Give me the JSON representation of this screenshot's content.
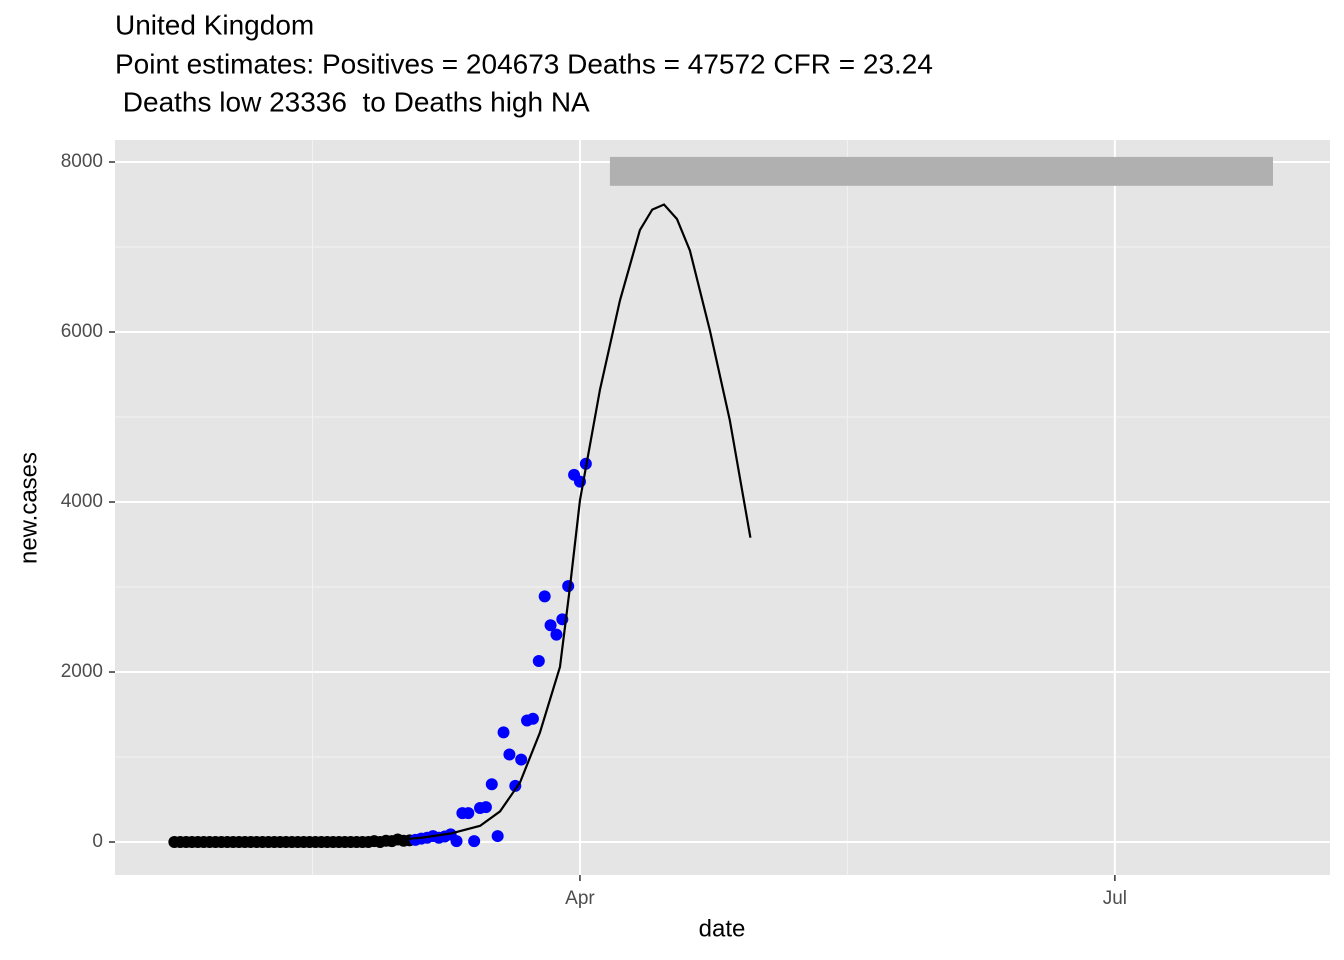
{
  "chart_data": {
    "type": "scatter",
    "title": [
      "United Kingdom",
      "Point estimates: Positives = 204673 Deaths = 47572 CFR = 23.24",
      " Deaths low 23336  to Deaths high NA"
    ],
    "x_label": "date",
    "y_label": "new.cases",
    "xlim": [
      12.9,
      219.6
    ],
    "ylim": [
      -388,
      8259
    ],
    "xticks": [
      {
        "value": 92,
        "label": "Apr"
      },
      {
        "value": 183,
        "label": "Jul"
      }
    ],
    "yticks": [
      0,
      2000,
      4000,
      6000,
      8000
    ],
    "grid": true,
    "background": "#e5e5e5",
    "series": [
      {
        "mode": "markers",
        "color": "#000000",
        "x": [
          23,
          24,
          25,
          26,
          27,
          28,
          29,
          30,
          31,
          32,
          33,
          34,
          35,
          36,
          37,
          38,
          39,
          40,
          41,
          42,
          43,
          44,
          45,
          46,
          47,
          48,
          49,
          50,
          51,
          52,
          53,
          54,
          55,
          56,
          57,
          58,
          59,
          60,
          61,
          62,
          63
        ],
        "values": [
          0,
          0,
          0,
          0,
          0,
          0,
          0,
          0,
          0,
          0,
          0,
          0,
          0,
          0,
          0,
          0,
          0,
          0,
          0,
          0,
          0,
          0,
          0,
          0,
          0,
          0,
          0,
          0,
          0,
          0,
          0,
          0,
          0,
          0,
          10,
          0,
          15,
          10,
          30,
          15,
          20
        ]
      },
      {
        "mode": "markers",
        "color": "#0000ff",
        "x": [
          64,
          65,
          66,
          67,
          68,
          69,
          70,
          71,
          72,
          73,
          74,
          75,
          76,
          77,
          78,
          79,
          80,
          81,
          82,
          83,
          84,
          85,
          86,
          87,
          88,
          89,
          90,
          91,
          92,
          93
        ],
        "values": [
          25,
          40,
          50,
          70,
          50,
          65,
          90,
          10,
          340,
          340,
          10,
          400,
          410,
          680,
          70,
          1290,
          1030,
          660,
          970,
          1430,
          1450,
          2130,
          2890,
          2550,
          2440,
          2620,
          3010,
          4320,
          4240,
          4450
        ]
      },
      {
        "mode": "line",
        "color": "#000000",
        "x": [
          23,
          55,
          60,
          65,
          70,
          75,
          78.4,
          81.8,
          85.2,
          88.6,
          90.3,
          92,
          95.4,
          98.8,
          102.2,
          104.3,
          106.3,
          108.5,
          110.7,
          114.1,
          117.5,
          121
        ],
        "values": [
          0,
          5,
          20,
          50,
          100,
          190,
          360,
          700,
          1290,
          2060,
          3000,
          4020,
          5320,
          6370,
          7200,
          7440,
          7500,
          7330,
          6960,
          6020,
          4960,
          3580
        ]
      }
    ],
    "rects": [
      {
        "xmin": 97.1,
        "xmax": 209.9,
        "ymin": 7720,
        "ymax": 8060,
        "color": "#b0b0b0"
      }
    ]
  }
}
